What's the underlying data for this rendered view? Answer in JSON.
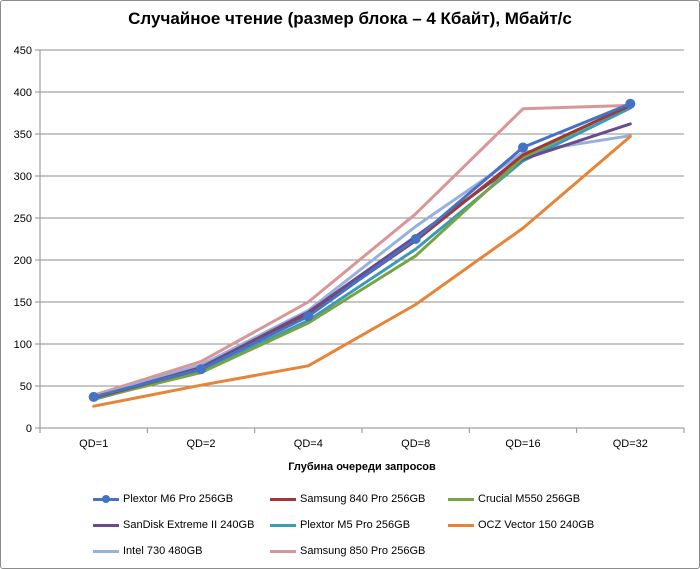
{
  "chart_data": {
    "type": "line",
    "title": "Случайное чтение (размер блока – 4 Кбайт), Мбайт/с",
    "xlabel": "Глубина очереди запросов",
    "ylabel": "",
    "categories": [
      "QD=1",
      "QD=2",
      "QD=4",
      "QD=8",
      "QD=16",
      "QD=32"
    ],
    "ylim": [
      0,
      450
    ],
    "yticks": [
      0,
      50,
      100,
      150,
      200,
      250,
      300,
      350,
      400,
      450
    ],
    "grid": true,
    "legend_position": "bottom",
    "series": [
      {
        "name": "Plextor M6 Pro 256GB",
        "color": "#4472c4",
        "marker": true,
        "values": [
          37,
          70,
          133,
          225,
          334,
          386
        ]
      },
      {
        "name": "Samsung 840 Pro 256GB",
        "color": "#a0383a",
        "marker": false,
        "values": [
          36,
          70,
          135,
          223,
          325,
          384
        ]
      },
      {
        "name": "Crucial M550 256GB",
        "color": "#77a545",
        "marker": false,
        "values": [
          35,
          66,
          125,
          205,
          322,
          385
        ]
      },
      {
        "name": "SanDisk Extreme II 240GB",
        "color": "#6b4a8e",
        "marker": false,
        "values": [
          36,
          72,
          138,
          228,
          320,
          362
        ]
      },
      {
        "name": "Plextor M5 Pro 256GB",
        "color": "#3a9ab8",
        "marker": false,
        "values": [
          34,
          68,
          128,
          213,
          318,
          381
        ]
      },
      {
        "name": "OCZ Vector 150 240GB",
        "color": "#e6853a",
        "marker": false,
        "values": [
          26,
          51,
          74,
          147,
          238,
          347
        ]
      },
      {
        "name": "Intel 730 480GB",
        "color": "#97b1dd",
        "marker": false,
        "values": [
          37,
          75,
          140,
          240,
          328,
          348
        ]
      },
      {
        "name": "Samsung 850 Pro 256GB",
        "color": "#d99696",
        "marker": false,
        "values": [
          39,
          79,
          150,
          255,
          380,
          384
        ]
      }
    ]
  }
}
